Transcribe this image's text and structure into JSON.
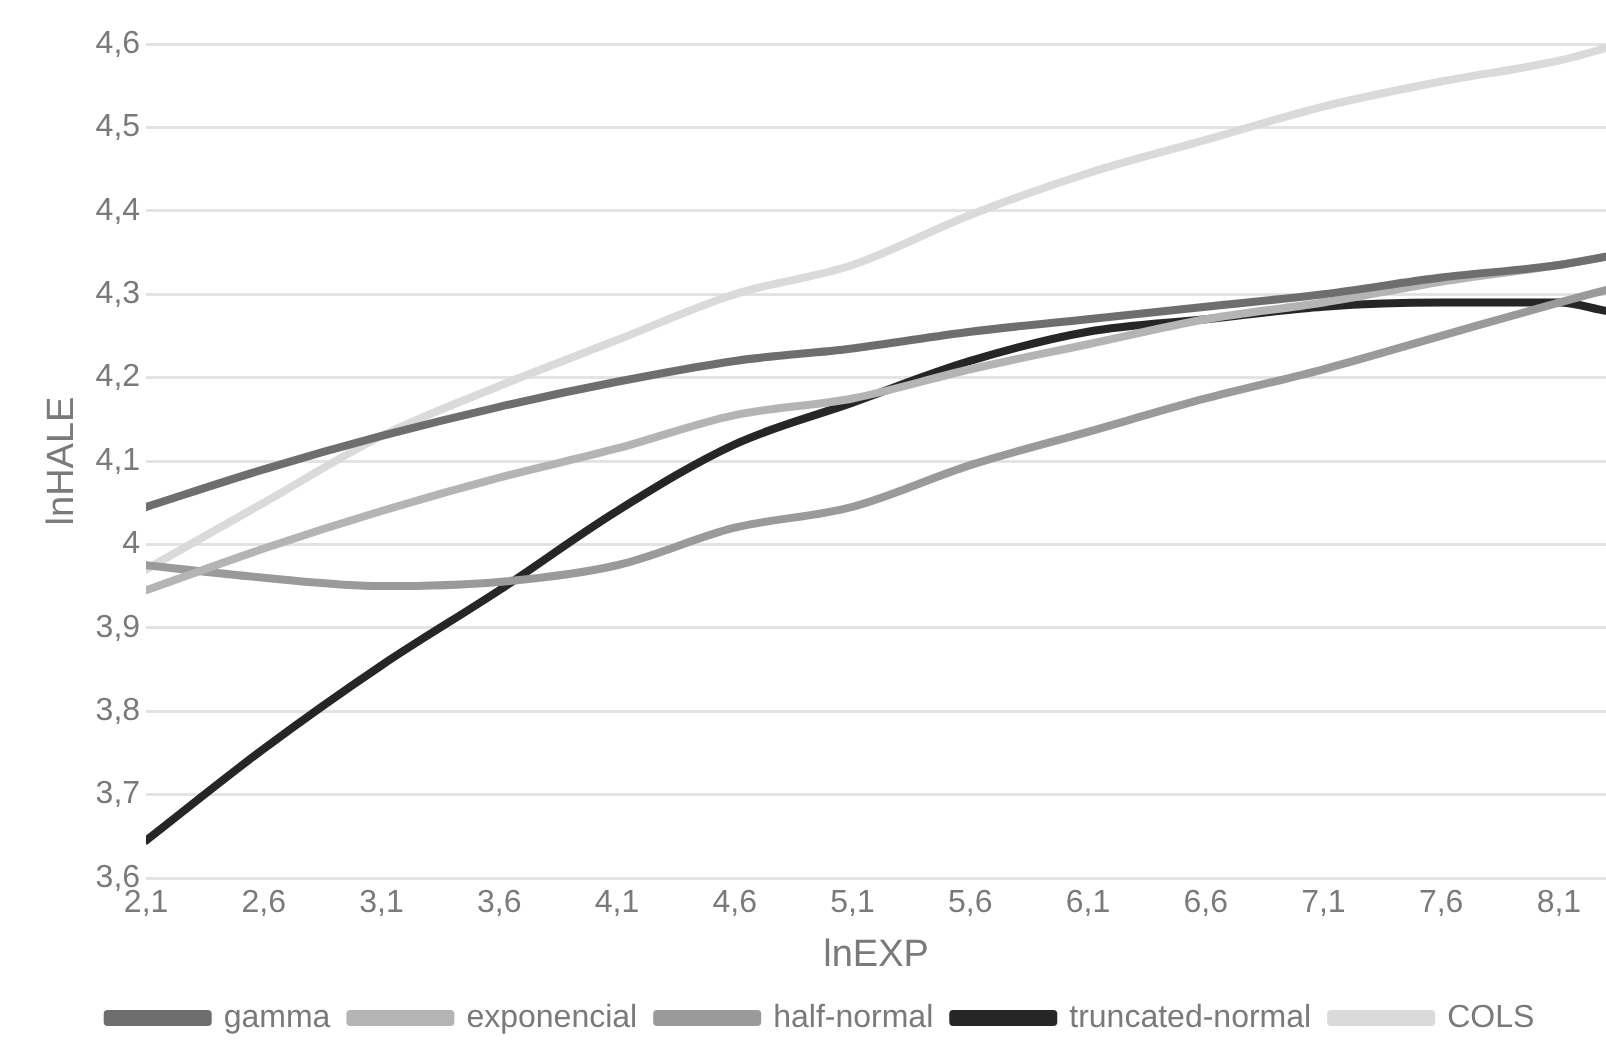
{
  "chart_data": {
    "type": "line",
    "xlabel": "lnEXP",
    "ylabel": "lnHALE",
    "x": [
      2.1,
      2.6,
      3.1,
      3.6,
      4.1,
      4.6,
      5.1,
      5.6,
      6.1,
      6.6,
      7.1,
      7.6,
      8.1,
      8.3
    ],
    "series": [
      {
        "name": "gamma",
        "color": "#6e6e6e",
        "values": [
          4.045,
          4.09,
          4.13,
          4.165,
          4.195,
          4.22,
          4.235,
          4.255,
          4.27,
          4.285,
          4.3,
          4.32,
          4.335,
          4.345
        ]
      },
      {
        "name": "exponencial",
        "color": "#b4b4b4",
        "values": [
          3.945,
          3.995,
          4.04,
          4.08,
          4.115,
          4.155,
          4.175,
          4.21,
          4.24,
          4.27,
          4.29,
          4.315,
          4.335,
          4.345
        ]
      },
      {
        "name": "half-normal",
        "color": "#9a9a9a",
        "values": [
          3.975,
          3.96,
          3.95,
          3.955,
          3.975,
          4.02,
          4.045,
          4.095,
          4.135,
          4.175,
          4.21,
          4.25,
          4.29,
          4.305
        ]
      },
      {
        "name": "truncated-normal",
        "color": "#262626",
        "values": [
          3.645,
          3.755,
          3.855,
          3.945,
          4.04,
          4.12,
          4.17,
          4.22,
          4.255,
          4.27,
          4.285,
          4.29,
          4.29,
          4.28
        ]
      },
      {
        "name": "COLS",
        "color": "#dadada",
        "values": [
          3.97,
          4.05,
          4.13,
          4.19,
          4.245,
          4.3,
          4.335,
          4.395,
          4.445,
          4.485,
          4.525,
          4.555,
          4.58,
          4.595
        ]
      }
    ],
    "xlim": [
      2.1,
      8.3
    ],
    "xticks": [
      {
        "value": 2.1,
        "label": "2,1"
      },
      {
        "value": 2.6,
        "label": "2,6"
      },
      {
        "value": 3.1,
        "label": "3,1"
      },
      {
        "value": 3.6,
        "label": "3,6"
      },
      {
        "value": 4.1,
        "label": "4,1"
      },
      {
        "value": 4.6,
        "label": "4,6"
      },
      {
        "value": 5.1,
        "label": "5,1"
      },
      {
        "value": 5.6,
        "label": "5,6"
      },
      {
        "value": 6.1,
        "label": "6,1"
      },
      {
        "value": 6.6,
        "label": "6,6"
      },
      {
        "value": 7.1,
        "label": "7,1"
      },
      {
        "value": 7.6,
        "label": "7,6"
      },
      {
        "value": 8.1,
        "label": "8,1"
      }
    ],
    "ylim": [
      3.6,
      4.6
    ],
    "yticks": [
      {
        "value": 3.6,
        "label": "3,6"
      },
      {
        "value": 3.7,
        "label": "3,7"
      },
      {
        "value": 3.8,
        "label": "3,8"
      },
      {
        "value": 3.9,
        "label": "3,9"
      },
      {
        "value": 4,
        "label": "4"
      },
      {
        "value": 4.1,
        "label": "4,1"
      },
      {
        "value": 4.2,
        "label": "4,2"
      },
      {
        "value": 4.3,
        "label": "4,3"
      },
      {
        "value": 4.4,
        "label": "4,4"
      },
      {
        "value": 4.5,
        "label": "4,5"
      },
      {
        "value": 4.6,
        "label": "4,6"
      }
    ],
    "grid": "y",
    "legend": "bottom",
    "marker": "none",
    "line_style": "solid"
  }
}
